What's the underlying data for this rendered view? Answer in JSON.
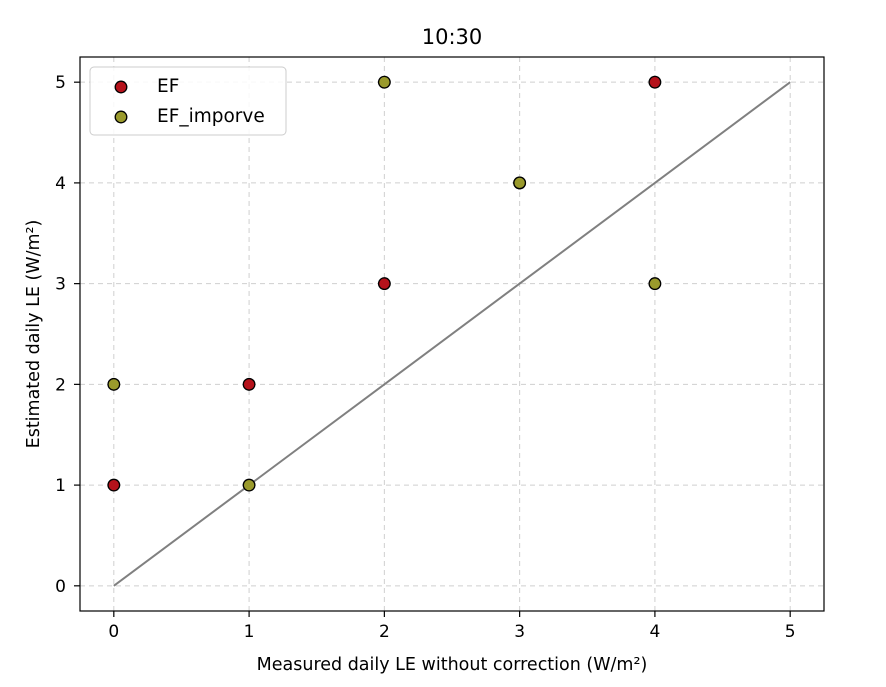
{
  "chart_data": {
    "type": "scatter",
    "title": "10:30",
    "xlabel": "Measured daily LE without correction (W/m²)",
    "ylabel": "Estimated daily LE (W/m²)",
    "xlim": [
      -0.25,
      5.25
    ],
    "ylim": [
      -0.25,
      5.25
    ],
    "xticks": [
      0,
      1,
      2,
      3,
      4,
      5
    ],
    "yticks": [
      0,
      1,
      2,
      3,
      4,
      5
    ],
    "grid": true,
    "legend_position": "top-left",
    "reference_line": {
      "name": "1:1 line",
      "x": [
        0,
        5
      ],
      "y": [
        0,
        5
      ],
      "color": "#808080"
    },
    "series": [
      {
        "name": "EF",
        "color": "#b5121b",
        "points": [
          [
            0,
            1
          ],
          [
            1,
            2
          ],
          [
            2,
            3
          ],
          [
            3,
            4
          ],
          [
            4,
            5
          ]
        ]
      },
      {
        "name": "EF_imporve",
        "color": "#9a9a2c",
        "points": [
          [
            0,
            2
          ],
          [
            1,
            1
          ],
          [
            2,
            5
          ],
          [
            3,
            4
          ],
          [
            4,
            3
          ]
        ]
      }
    ]
  }
}
